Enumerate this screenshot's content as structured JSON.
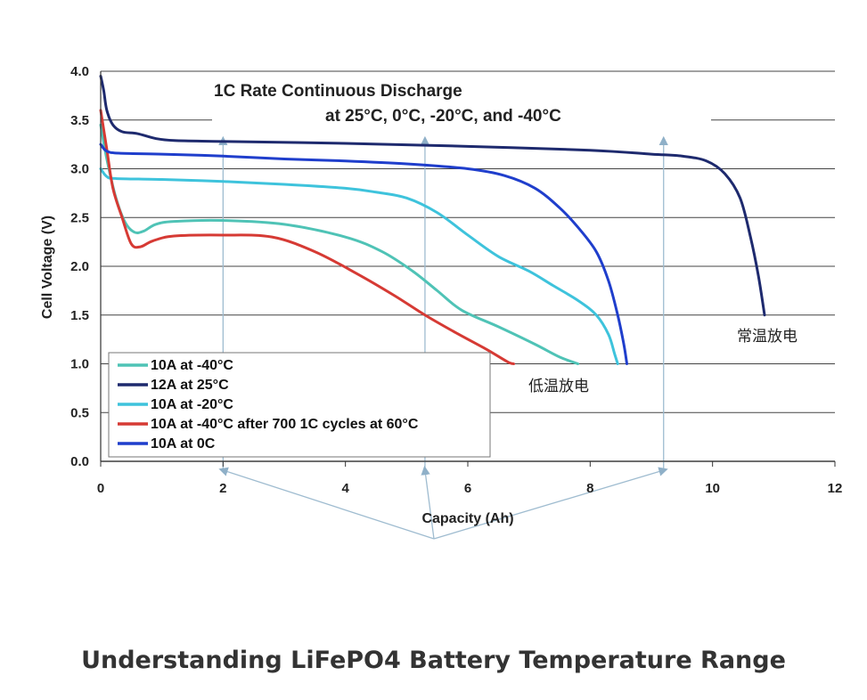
{
  "caption": "Understanding LiFePO4 Battery Temperature Range",
  "chart_data": {
    "type": "line",
    "title": "1C Rate Continuous Discharge",
    "subtitle": "at 25°C, 0°C, -20°C, and -40°C",
    "xlabel": "Capacity (Ah)",
    "ylabel": "Cell Voltage (V)",
    "xlim": [
      0,
      12
    ],
    "ylim": [
      0,
      4.0
    ],
    "x_ticks": [
      "0",
      "2",
      "4",
      "6",
      "8",
      "10",
      "12"
    ],
    "y_ticks": [
      "0.0",
      "0.5",
      "1.0",
      "1.5",
      "2.0",
      "2.5",
      "3.0",
      "3.5",
      "4.0"
    ],
    "grid": "horizontal",
    "legend_position": "bottom-left",
    "series": [
      {
        "name": "10A at -40°C",
        "color": "#4fc3b6",
        "points": [
          [
            0,
            3.45
          ],
          [
            0.1,
            3.1
          ],
          [
            0.25,
            2.7
          ],
          [
            0.4,
            2.45
          ],
          [
            0.55,
            2.35
          ],
          [
            0.7,
            2.36
          ],
          [
            0.9,
            2.43
          ],
          [
            1.2,
            2.46
          ],
          [
            2,
            2.47
          ],
          [
            3,
            2.43
          ],
          [
            4,
            2.3
          ],
          [
            4.6,
            2.15
          ],
          [
            5.1,
            1.95
          ],
          [
            5.5,
            1.75
          ],
          [
            5.9,
            1.55
          ],
          [
            6.5,
            1.38
          ],
          [
            7.1,
            1.2
          ],
          [
            7.5,
            1.07
          ],
          [
            7.8,
            1.0
          ]
        ]
      },
      {
        "name": "12A at 25°C",
        "color": "#1e2a6e",
        "points": [
          [
            0,
            3.95
          ],
          [
            0.05,
            3.8
          ],
          [
            0.1,
            3.6
          ],
          [
            0.2,
            3.45
          ],
          [
            0.35,
            3.38
          ],
          [
            0.6,
            3.36
          ],
          [
            0.9,
            3.31
          ],
          [
            1.2,
            3.29
          ],
          [
            2,
            3.28
          ],
          [
            4,
            3.26
          ],
          [
            6,
            3.23
          ],
          [
            8,
            3.19
          ],
          [
            9,
            3.15
          ],
          [
            9.5,
            3.13
          ],
          [
            9.9,
            3.08
          ],
          [
            10.2,
            2.95
          ],
          [
            10.45,
            2.7
          ],
          [
            10.62,
            2.3
          ],
          [
            10.75,
            1.9
          ],
          [
            10.85,
            1.5
          ]
        ]
      },
      {
        "name": "10A at -20°C",
        "color": "#3ec3dc",
        "points": [
          [
            0,
            3.0
          ],
          [
            0.1,
            2.92
          ],
          [
            0.25,
            2.9
          ],
          [
            1,
            2.89
          ],
          [
            2,
            2.87
          ],
          [
            3,
            2.84
          ],
          [
            4,
            2.8
          ],
          [
            4.5,
            2.76
          ],
          [
            5,
            2.7
          ],
          [
            5.5,
            2.55
          ],
          [
            6,
            2.32
          ],
          [
            6.5,
            2.1
          ],
          [
            7,
            1.95
          ],
          [
            7.4,
            1.8
          ],
          [
            7.8,
            1.65
          ],
          [
            8.1,
            1.5
          ],
          [
            8.3,
            1.3
          ],
          [
            8.4,
            1.1
          ],
          [
            8.45,
            1.0
          ]
        ]
      },
      {
        "name": "10A at -40°C after 700 1C cycles at 60°C",
        "color": "#d63a34",
        "points": [
          [
            0,
            3.6
          ],
          [
            0.1,
            3.2
          ],
          [
            0.2,
            2.8
          ],
          [
            0.35,
            2.5
          ],
          [
            0.5,
            2.23
          ],
          [
            0.65,
            2.2
          ],
          [
            0.85,
            2.26
          ],
          [
            1.2,
            2.31
          ],
          [
            2,
            2.32
          ],
          [
            2.8,
            2.3
          ],
          [
            3.5,
            2.15
          ],
          [
            4.2,
            1.92
          ],
          [
            4.8,
            1.7
          ],
          [
            5.3,
            1.5
          ],
          [
            5.8,
            1.32
          ],
          [
            6.3,
            1.15
          ],
          [
            6.65,
            1.02
          ],
          [
            6.75,
            1.0
          ]
        ]
      },
      {
        "name": "10A at 0C",
        "color": "#1f3ecc",
        "points": [
          [
            0,
            3.25
          ],
          [
            0.1,
            3.18
          ],
          [
            0.3,
            3.16
          ],
          [
            1,
            3.15
          ],
          [
            2,
            3.13
          ],
          [
            3,
            3.1
          ],
          [
            4,
            3.08
          ],
          [
            5,
            3.05
          ],
          [
            6,
            3.0
          ],
          [
            6.6,
            2.93
          ],
          [
            7.1,
            2.8
          ],
          [
            7.5,
            2.6
          ],
          [
            7.8,
            2.4
          ],
          [
            8.1,
            2.15
          ],
          [
            8.3,
            1.85
          ],
          [
            8.45,
            1.5
          ],
          [
            8.55,
            1.2
          ],
          [
            8.6,
            1.0
          ]
        ]
      }
    ],
    "annotations": {
      "high_temp": "常温放电",
      "low_temp": "低温放电"
    },
    "arrow_x_values": [
      2.0,
      5.3,
      9.2
    ]
  }
}
